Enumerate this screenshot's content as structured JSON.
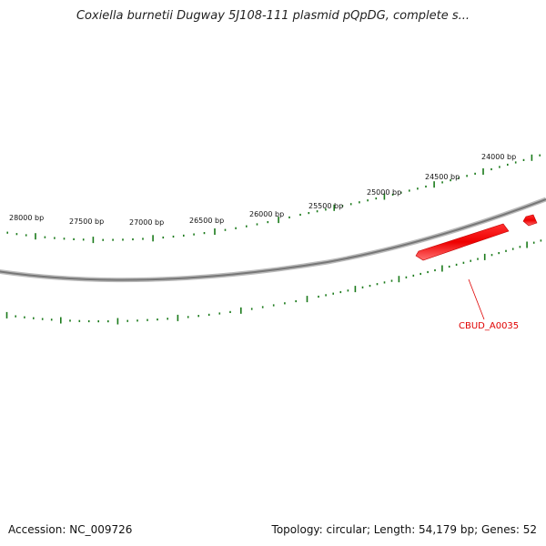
{
  "title": "Coxiella burnetii Dugway 5J108-111 plasmid pQpDG, complete s...",
  "footer": {
    "accession": "Accession: NC_009726",
    "summary": "Topology: circular; Length: 54,179 bp; Genes: 52"
  },
  "map": {
    "backbone_color": "#888888",
    "tick_color": "#1a7a1a",
    "gene_color": "#ff0000",
    "tick_labels": [
      "28000 bp",
      "27500 bp",
      "27000 bp",
      "26500 bp",
      "26000 bp",
      "25500 bp",
      "25000 bp",
      "24500 bp",
      "24000 bp"
    ],
    "genes": [
      {
        "label": "CBUD_A0035"
      },
      {
        "label": ""
      }
    ]
  }
}
